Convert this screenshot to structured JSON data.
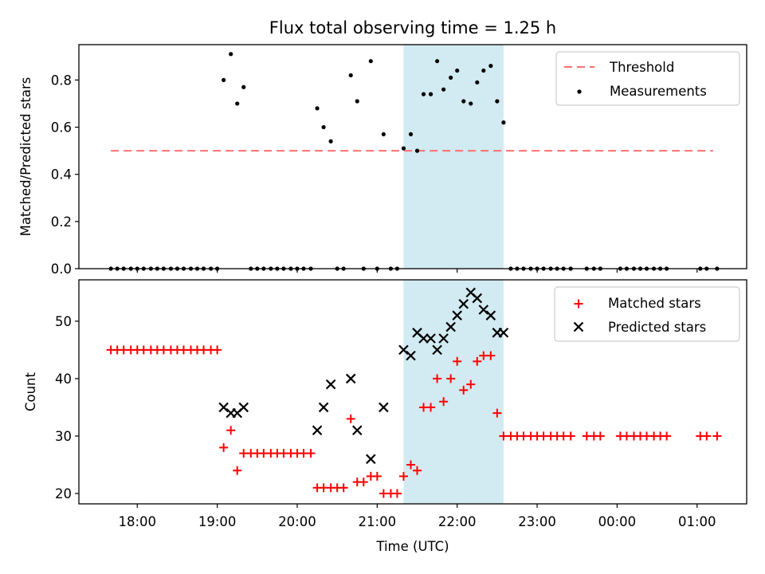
{
  "colors": {
    "threshold": "#ff7070",
    "matched": "#ff0000",
    "predicted": "#000000",
    "measurement": "#000000",
    "highlight": "#add8e6"
  },
  "chart_data": [
    {
      "type": "scatter",
      "title": "Flux total observing time = 1.25 h",
      "xlabel": "",
      "ylabel": "Matched/Predicted stars",
      "ylim": [
        0,
        0.95
      ],
      "xlim": [
        17.27,
        25.62
      ],
      "yticks": [
        "0.0",
        "0.2",
        "0.4",
        "0.6",
        "0.8"
      ],
      "highlight_span": [
        21.33,
        22.58
      ],
      "legend": {
        "position": "upper right",
        "threshold_label": "Threshold",
        "measurement_label": "Measurements"
      },
      "threshold": {
        "y": 0.5,
        "x_range": [
          17.67,
          25.2
        ]
      },
      "series": [
        {
          "name": "Measurements",
          "points": [
            [
              17.67,
              0
            ],
            [
              17.75,
              0
            ],
            [
              17.83,
              0
            ],
            [
              17.92,
              0
            ],
            [
              18.0,
              0
            ],
            [
              18.08,
              0
            ],
            [
              18.17,
              0
            ],
            [
              18.25,
              0
            ],
            [
              18.33,
              0
            ],
            [
              18.42,
              0
            ],
            [
              18.5,
              0
            ],
            [
              18.58,
              0
            ],
            [
              18.67,
              0
            ],
            [
              18.75,
              0
            ],
            [
              18.83,
              0
            ],
            [
              18.92,
              0
            ],
            [
              19.0,
              0
            ],
            [
              19.08,
              0.8
            ],
            [
              19.17,
              0.91
            ],
            [
              19.25,
              0.7
            ],
            [
              19.33,
              0.77
            ],
            [
              19.42,
              0
            ],
            [
              19.5,
              0
            ],
            [
              19.58,
              0
            ],
            [
              19.67,
              0
            ],
            [
              19.75,
              0
            ],
            [
              19.83,
              0
            ],
            [
              19.92,
              0
            ],
            [
              20.0,
              0
            ],
            [
              20.08,
              0
            ],
            [
              20.17,
              0
            ],
            [
              20.25,
              0.68
            ],
            [
              20.33,
              0.6
            ],
            [
              20.42,
              0.54
            ],
            [
              20.5,
              0
            ],
            [
              20.58,
              0
            ],
            [
              20.67,
              0.82
            ],
            [
              20.75,
              0.71
            ],
            [
              20.83,
              0
            ],
            [
              20.92,
              0.88
            ],
            [
              21.0,
              0
            ],
            [
              21.08,
              0.57
            ],
            [
              21.17,
              0
            ],
            [
              21.25,
              0
            ],
            [
              21.33,
              0.51
            ],
            [
              21.42,
              0.57
            ],
            [
              21.5,
              0.5
            ],
            [
              21.58,
              0.74
            ],
            [
              21.67,
              0.74
            ],
            [
              21.75,
              0.88
            ],
            [
              21.83,
              0.76
            ],
            [
              21.92,
              0.81
            ],
            [
              22.0,
              0.84
            ],
            [
              22.08,
              0.71
            ],
            [
              22.17,
              0.7
            ],
            [
              22.25,
              0.79
            ],
            [
              22.33,
              0.84
            ],
            [
              22.42,
              0.86
            ],
            [
              22.5,
              0.71
            ],
            [
              22.58,
              0.62
            ],
            [
              22.67,
              0
            ],
            [
              22.75,
              0
            ],
            [
              22.83,
              0
            ],
            [
              22.92,
              0
            ],
            [
              23.0,
              0
            ],
            [
              23.08,
              0
            ],
            [
              23.17,
              0
            ],
            [
              23.25,
              0
            ],
            [
              23.33,
              0
            ],
            [
              23.42,
              0
            ],
            [
              23.62,
              0
            ],
            [
              23.71,
              0
            ],
            [
              23.79,
              0
            ],
            [
              24.04,
              0
            ],
            [
              24.12,
              0
            ],
            [
              24.21,
              0
            ],
            [
              24.29,
              0
            ],
            [
              24.37,
              0
            ],
            [
              24.46,
              0
            ],
            [
              24.54,
              0
            ],
            [
              24.62,
              0
            ],
            [
              25.04,
              0
            ],
            [
              25.12,
              0
            ],
            [
              25.25,
              0
            ]
          ]
        }
      ]
    },
    {
      "type": "scatter",
      "title": "",
      "xlabel": "Time (UTC)",
      "ylabel": "Count",
      "ylim": [
        18.2,
        57.2
      ],
      "xlim": [
        17.27,
        25.62
      ],
      "yticks": [
        "20",
        "30",
        "40",
        "50"
      ],
      "xticks": [
        "18:00",
        "19:00",
        "20:00",
        "21:00",
        "22:00",
        "23:00",
        "00:00",
        "01:00"
      ],
      "highlight_span": [
        21.33,
        22.58
      ],
      "legend": {
        "position": "upper right",
        "matched_label": "Matched stars",
        "predicted_label": "Predicted stars"
      },
      "series": [
        {
          "name": "Matched stars",
          "points": [
            [
              17.67,
              45
            ],
            [
              17.75,
              45
            ],
            [
              17.83,
              45
            ],
            [
              17.92,
              45
            ],
            [
              18.0,
              45
            ],
            [
              18.08,
              45
            ],
            [
              18.17,
              45
            ],
            [
              18.25,
              45
            ],
            [
              18.33,
              45
            ],
            [
              18.42,
              45
            ],
            [
              18.5,
              45
            ],
            [
              18.58,
              45
            ],
            [
              18.67,
              45
            ],
            [
              18.75,
              45
            ],
            [
              18.83,
              45
            ],
            [
              18.92,
              45
            ],
            [
              19.0,
              45
            ],
            [
              19.08,
              28
            ],
            [
              19.17,
              31
            ],
            [
              19.25,
              24
            ],
            [
              19.33,
              27
            ],
            [
              19.42,
              27
            ],
            [
              19.5,
              27
            ],
            [
              19.58,
              27
            ],
            [
              19.67,
              27
            ],
            [
              19.75,
              27
            ],
            [
              19.83,
              27
            ],
            [
              19.92,
              27
            ],
            [
              20.0,
              27
            ],
            [
              20.08,
              27
            ],
            [
              20.17,
              27
            ],
            [
              20.25,
              21
            ],
            [
              20.33,
              21
            ],
            [
              20.42,
              21
            ],
            [
              20.5,
              21
            ],
            [
              20.58,
              21
            ],
            [
              20.67,
              33
            ],
            [
              20.75,
              22
            ],
            [
              20.83,
              22
            ],
            [
              20.92,
              23
            ],
            [
              21.0,
              23
            ],
            [
              21.08,
              20
            ],
            [
              21.17,
              20
            ],
            [
              21.25,
              20
            ],
            [
              21.33,
              23
            ],
            [
              21.42,
              25
            ],
            [
              21.5,
              24
            ],
            [
              21.58,
              35
            ],
            [
              21.67,
              35
            ],
            [
              21.75,
              40
            ],
            [
              21.83,
              36
            ],
            [
              21.92,
              40
            ],
            [
              22.0,
              43
            ],
            [
              22.08,
              38
            ],
            [
              22.17,
              39
            ],
            [
              22.25,
              43
            ],
            [
              22.33,
              44
            ],
            [
              22.42,
              44
            ],
            [
              22.5,
              34
            ],
            [
              22.58,
              30
            ],
            [
              22.67,
              30
            ],
            [
              22.75,
              30
            ],
            [
              22.83,
              30
            ],
            [
              22.92,
              30
            ],
            [
              23.0,
              30
            ],
            [
              23.08,
              30
            ],
            [
              23.17,
              30
            ],
            [
              23.25,
              30
            ],
            [
              23.33,
              30
            ],
            [
              23.42,
              30
            ],
            [
              23.62,
              30
            ],
            [
              23.71,
              30
            ],
            [
              23.79,
              30
            ],
            [
              24.04,
              30
            ],
            [
              24.12,
              30
            ],
            [
              24.21,
              30
            ],
            [
              24.29,
              30
            ],
            [
              24.37,
              30
            ],
            [
              24.46,
              30
            ],
            [
              24.54,
              30
            ],
            [
              24.62,
              30
            ],
            [
              25.04,
              30
            ],
            [
              25.12,
              30
            ],
            [
              25.25,
              30
            ]
          ]
        },
        {
          "name": "Predicted stars",
          "points": [
            [
              19.08,
              35
            ],
            [
              19.17,
              34
            ],
            [
              19.25,
              34
            ],
            [
              19.33,
              35
            ],
            [
              20.25,
              31
            ],
            [
              20.33,
              35
            ],
            [
              20.42,
              39
            ],
            [
              20.67,
              40
            ],
            [
              20.75,
              31
            ],
            [
              20.92,
              26
            ],
            [
              21.08,
              35
            ],
            [
              21.33,
              45
            ],
            [
              21.42,
              44
            ],
            [
              21.5,
              48
            ],
            [
              21.58,
              47
            ],
            [
              21.67,
              47
            ],
            [
              21.75,
              45
            ],
            [
              21.83,
              47
            ],
            [
              21.92,
              49
            ],
            [
              22.0,
              51
            ],
            [
              22.08,
              53
            ],
            [
              22.17,
              55
            ],
            [
              22.25,
              54
            ],
            [
              22.33,
              52
            ],
            [
              22.42,
              51
            ],
            [
              22.5,
              48
            ],
            [
              22.58,
              48
            ]
          ]
        }
      ]
    }
  ]
}
